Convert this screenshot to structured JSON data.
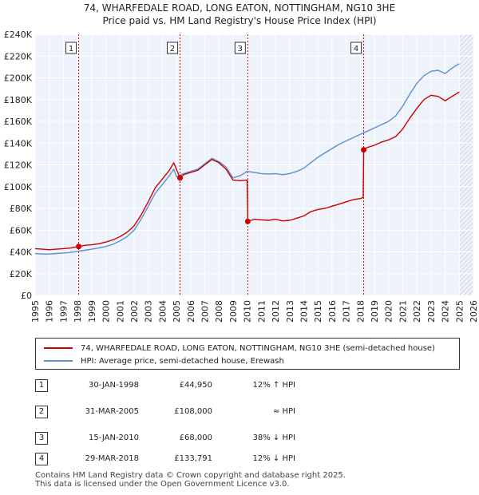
{
  "title": {
    "line1": "74, WHARFEDALE ROAD, LONG EATON, NOTTINGHAM, NG10 3HE",
    "line2": "Price paid vs. HM Land Registry's House Price Index (HPI)"
  },
  "chart_data": {
    "type": "line",
    "title": "74, WHARFEDALE ROAD, LONG EATON, NOTTINGHAM, NG10 3HE — Price paid vs. HM Land Registry's House Price Index (HPI)",
    "xlabel": "",
    "ylabel": "",
    "xlim": [
      1995,
      2026
    ],
    "ylim": [
      0,
      240000
    ],
    "x_ticks": [
      "1995",
      "1996",
      "1997",
      "1998",
      "1999",
      "2000",
      "2001",
      "2002",
      "2003",
      "2004",
      "2005",
      "2006",
      "2007",
      "2008",
      "2009",
      "2010",
      "2011",
      "2012",
      "2013",
      "2014",
      "2015",
      "2016",
      "2017",
      "2018",
      "2019",
      "2020",
      "2021",
      "2022",
      "2023",
      "2024",
      "2025",
      "2026"
    ],
    "y_ticks": [
      {
        "value": 0,
        "label": "£0"
      },
      {
        "value": 20000,
        "label": "£20K"
      },
      {
        "value": 40000,
        "label": "£40K"
      },
      {
        "value": 60000,
        "label": "£60K"
      },
      {
        "value": 80000,
        "label": "£80K"
      },
      {
        "value": 100000,
        "label": "£100K"
      },
      {
        "value": 120000,
        "label": "£120K"
      },
      {
        "value": 140000,
        "label": "£140K"
      },
      {
        "value": 160000,
        "label": "£160K"
      },
      {
        "value": 180000,
        "label": "£180K"
      },
      {
        "value": 200000,
        "label": "£200K"
      },
      {
        "value": 220000,
        "label": "£220K"
      },
      {
        "value": 240000,
        "label": "£240K"
      }
    ],
    "grid": true,
    "projection_start": 2025.0,
    "series": [
      {
        "name": "74, WHARFEDALE ROAD, LONG EATON, NOTTINGHAM, NG10 3HE (semi-detached house)",
        "color": "#cc0000",
        "x": [
          1995.0,
          1995.5,
          1996.0,
          1996.5,
          1997.0,
          1997.5,
          1998.08,
          1998.5,
          1999.0,
          1999.5,
          2000.0,
          2000.5,
          2001.0,
          2001.5,
          2002.0,
          2002.5,
          2003.0,
          2003.5,
          2004.0,
          2004.5,
          2004.8,
          2005.25,
          2005.5,
          2006.0,
          2006.5,
          2007.0,
          2007.5,
          2008.0,
          2008.5,
          2009.0,
          2009.5,
          2010.0,
          2010.04,
          2010.5,
          2011.0,
          2011.5,
          2012.0,
          2012.5,
          2013.0,
          2013.5,
          2014.0,
          2014.5,
          2015.0,
          2015.5,
          2016.0,
          2016.5,
          2017.0,
          2017.5,
          2018.0,
          2018.2,
          2018.24,
          2018.5,
          2019.0,
          2019.5,
          2020.0,
          2020.5,
          2021.0,
          2021.5,
          2022.0,
          2022.5,
          2023.0,
          2023.5,
          2024.0,
          2024.5,
          2025.0
        ],
        "y": [
          43000,
          42500,
          42000,
          42500,
          43000,
          43500,
          44950,
          46000,
          46500,
          47500,
          49000,
          51000,
          54000,
          58000,
          64000,
          74000,
          86000,
          99000,
          107000,
          115000,
          122000,
          108000,
          111000,
          113000,
          115000,
          120000,
          125000,
          122000,
          116000,
          106000,
          105500,
          106000,
          68000,
          70000,
          69500,
          69000,
          70000,
          68500,
          69000,
          71000,
          73000,
          77000,
          79000,
          80000,
          82000,
          84000,
          86000,
          88000,
          89000,
          90000,
          133791,
          136000,
          138000,
          141000,
          143000,
          146000,
          153000,
          163000,
          172000,
          180000,
          184000,
          183000,
          179000,
          183000,
          187000
        ]
      },
      {
        "name": "HPI: Average price, semi-detached house, Erewash",
        "color": "#5b8fd0",
        "x": [
          1995.0,
          1995.5,
          1996.0,
          1996.5,
          1997.0,
          1997.5,
          1998.0,
          1998.5,
          1999.0,
          1999.5,
          2000.0,
          2000.5,
          2001.0,
          2001.5,
          2002.0,
          2002.5,
          2003.0,
          2003.5,
          2004.0,
          2004.5,
          2004.8,
          2005.0,
          2005.5,
          2006.0,
          2006.5,
          2007.0,
          2007.5,
          2008.0,
          2008.5,
          2009.0,
          2009.5,
          2010.0,
          2010.5,
          2011.0,
          2011.5,
          2012.0,
          2012.5,
          2013.0,
          2013.5,
          2014.0,
          2014.5,
          2015.0,
          2015.5,
          2016.0,
          2016.5,
          2017.0,
          2017.5,
          2018.0,
          2018.5,
          2019.0,
          2019.5,
          2020.0,
          2020.5,
          2021.0,
          2021.5,
          2022.0,
          2022.5,
          2023.0,
          2023.5,
          2024.0,
          2024.5,
          2025.0
        ],
        "y": [
          38500,
          38000,
          38000,
          38500,
          39000,
          39500,
          40500,
          41500,
          42500,
          43500,
          45000,
          47000,
          50000,
          54000,
          60000,
          70000,
          82000,
          94000,
          102000,
          110000,
          116000,
          109000,
          112000,
          114000,
          116000,
          121000,
          126000,
          123000,
          118000,
          108000,
          110000,
          114000,
          113000,
          112000,
          111500,
          112000,
          111000,
          112000,
          114000,
          117000,
          122000,
          127000,
          131000,
          135000,
          139000,
          142000,
          145000,
          148000,
          151000,
          154000,
          157000,
          160000,
          165000,
          174000,
          185000,
          195000,
          202000,
          206000,
          207000,
          204000,
          209000,
          213000
        ]
      }
    ],
    "transactions": [
      {
        "num": "1",
        "date": "30-JAN-1998",
        "x": 1998.08,
        "price": 44950,
        "price_label": "£44,950",
        "hpi": "12% ↑ HPI"
      },
      {
        "num": "2",
        "date": "31-MAR-2005",
        "x": 2005.25,
        "price": 108000,
        "price_label": "£108,000",
        "hpi": "≈ HPI"
      },
      {
        "num": "3",
        "date": "15-JAN-2010",
        "x": 2010.04,
        "price": 68000,
        "price_label": "£68,000",
        "hpi": "38% ↓ HPI"
      },
      {
        "num": "4",
        "date": "29-MAR-2018",
        "x": 2018.24,
        "price": 133791,
        "price_label": "£133,791",
        "hpi": "12% ↓ HPI"
      }
    ],
    "legend_position": "bottom"
  },
  "legend": {
    "property_label": "74, WHARFEDALE ROAD, LONG EATON, NOTTINGHAM, NG10 3HE (semi-detached house)",
    "hpi_label": "HPI: Average price, semi-detached house, Erewash"
  },
  "footer": {
    "line1": "Contains HM Land Registry data © Crown copyright and database right 2025.",
    "line2": "This data is licensed under the Open Government Licence v3.0."
  },
  "colors": {
    "property": "#cc0000",
    "hpi": "#5b8fd0",
    "plot_bg": "#eef3fb",
    "grid": "#ffffff",
    "marker_line": "#cc0000"
  }
}
